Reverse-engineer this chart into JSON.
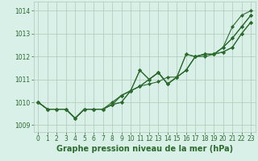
{
  "x": [
    0,
    1,
    2,
    3,
    4,
    5,
    6,
    7,
    8,
    9,
    10,
    11,
    12,
    13,
    14,
    15,
    16,
    17,
    18,
    19,
    20,
    21,
    22,
    23
  ],
  "series": [
    [
      1010.0,
      1009.7,
      1009.7,
      1009.7,
      1009.3,
      1009.7,
      1009.7,
      1009.7,
      1010.0,
      1010.3,
      1010.5,
      1010.7,
      1010.8,
      1010.9,
      1011.1,
      1011.1,
      1012.1,
      1012.0,
      1012.1,
      1012.1,
      1012.4,
      1013.3,
      1013.8,
      1014.0
    ],
    [
      1010.0,
      1009.7,
      1009.7,
      1009.7,
      1009.3,
      1009.7,
      1009.7,
      1009.7,
      1009.9,
      1010.3,
      1010.5,
      1011.4,
      1011.0,
      1011.3,
      1010.8,
      1011.1,
      1012.1,
      1012.0,
      1012.1,
      1012.1,
      1012.4,
      1012.8,
      1013.3,
      1013.8
    ],
    [
      1010.0,
      1009.7,
      1009.7,
      1009.7,
      1009.3,
      1009.7,
      1009.7,
      1009.7,
      1009.9,
      1010.3,
      1010.5,
      1011.4,
      1011.0,
      1011.3,
      1010.8,
      1011.1,
      1011.4,
      1012.0,
      1012.1,
      1012.1,
      1012.4,
      1012.8,
      1013.3,
      1013.8
    ],
    [
      1010.0,
      1009.7,
      1009.7,
      1009.7,
      1009.3,
      1009.7,
      1009.7,
      1009.7,
      1009.9,
      1010.0,
      1010.5,
      1010.7,
      1011.0,
      1011.3,
      1010.8,
      1011.1,
      1011.4,
      1012.0,
      1012.1,
      1012.1,
      1012.2,
      1012.4,
      1013.0,
      1013.5
    ],
    [
      1010.0,
      1009.7,
      1009.7,
      1009.7,
      1009.3,
      1009.7,
      1009.7,
      1009.7,
      1009.9,
      1010.0,
      1010.5,
      1010.7,
      1011.0,
      1011.3,
      1010.8,
      1011.1,
      1011.4,
      1012.0,
      1012.0,
      1012.1,
      1012.2,
      1012.4,
      1013.0,
      1013.5
    ]
  ],
  "line_color": "#2d6a2d",
  "marker": "D",
  "marker_size": 2,
  "bg_color": "#d8f0e8",
  "grid_color": "#b0c8b8",
  "ylabel_ticks": [
    1009,
    1010,
    1011,
    1012,
    1013,
    1014
  ],
  "ylim": [
    1008.7,
    1014.4
  ],
  "xlim": [
    -0.5,
    23.5
  ],
  "xlabel": "Graphe pression niveau de la mer (hPa)",
  "xlabel_fontsize": 7,
  "tick_fontsize": 5.5,
  "line_width": 0.8
}
